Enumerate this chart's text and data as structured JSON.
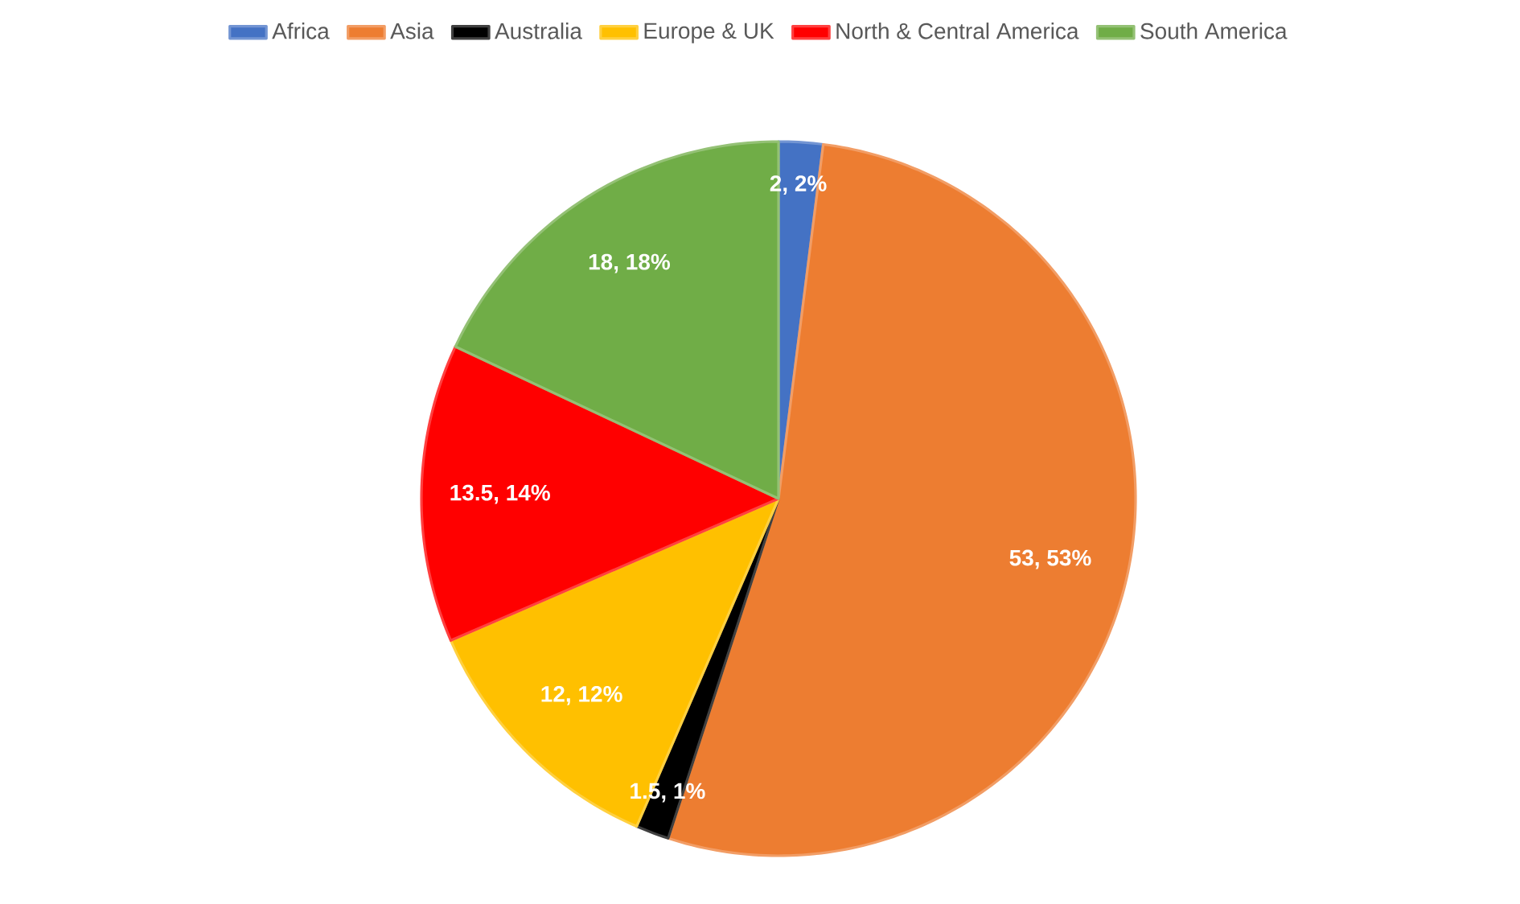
{
  "chart_data": {
    "type": "pie",
    "categories": [
      "Africa",
      "Asia",
      "Australia",
      "Europe & UK",
      "North & Central America",
      "South America"
    ],
    "values": [
      2,
      53,
      1.5,
      12,
      13.5,
      18
    ],
    "colors": [
      "#4472c4",
      "#ed7d31",
      "#000000",
      "#ffc000",
      "#ff0000",
      "#70ad47"
    ],
    "value_labels": [
      "2, 2%",
      "53, 53%",
      "1.5, 1%",
      "12, 12%",
      "13.5, 14%",
      "18, 18%"
    ],
    "legend": "top"
  }
}
